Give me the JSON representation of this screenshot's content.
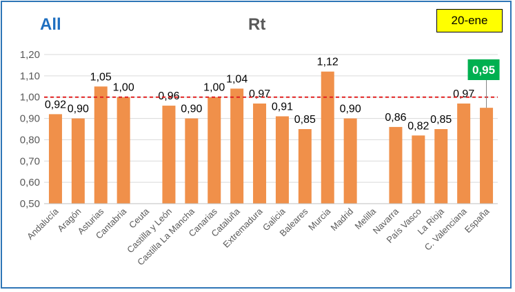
{
  "header": {
    "left_title": "All",
    "center_title": "Rt",
    "date_badge": "20-ene"
  },
  "chart_data": {
    "type": "bar",
    "title": "Rt",
    "categories": [
      "Andalucía",
      "Aragón",
      "Asturias",
      "Cantabria",
      "Ceuta",
      "Castilla y León",
      "Castilla La Mancha",
      "Canarias",
      "Cataluña",
      "Extremadura",
      "Galicia",
      "Baleares",
      "Murcia",
      "Madrid",
      "Melilla",
      "Navarra",
      "País Vasco",
      "La Rioja",
      "C. Valenciana",
      "España"
    ],
    "values": [
      0.92,
      0.9,
      1.05,
      1.0,
      null,
      0.96,
      0.9,
      1.0,
      1.04,
      0.97,
      0.91,
      0.85,
      1.12,
      0.9,
      null,
      0.86,
      0.82,
      0.85,
      0.97,
      0.95
    ],
    "labels": [
      "0,92",
      "0,90",
      "1,05",
      "1,00",
      "",
      "0,96",
      "0,90",
      "1,00",
      "1,04",
      "0,97",
      "0,91",
      "0,85",
      "1,12",
      "0,90",
      "",
      "0,86",
      "0,82",
      "0,85",
      "0,97",
      "0,95"
    ],
    "highlight_index": 19,
    "yticks": [
      "0,50",
      "0,60",
      "0,70",
      "0,80",
      "0,90",
      "1,00",
      "1,10",
      "1,20"
    ],
    "ytick_values": [
      0.5,
      0.6,
      0.7,
      0.8,
      0.9,
      1.0,
      1.1,
      1.2
    ],
    "ylim": [
      0.5,
      1.2
    ],
    "reference_line": 1.0,
    "grid": true,
    "colors": {
      "bar": "#f0904a",
      "reference_line": "#e02020",
      "highlight_box": "#00b050",
      "gridline": "#d9d9d9"
    }
  }
}
